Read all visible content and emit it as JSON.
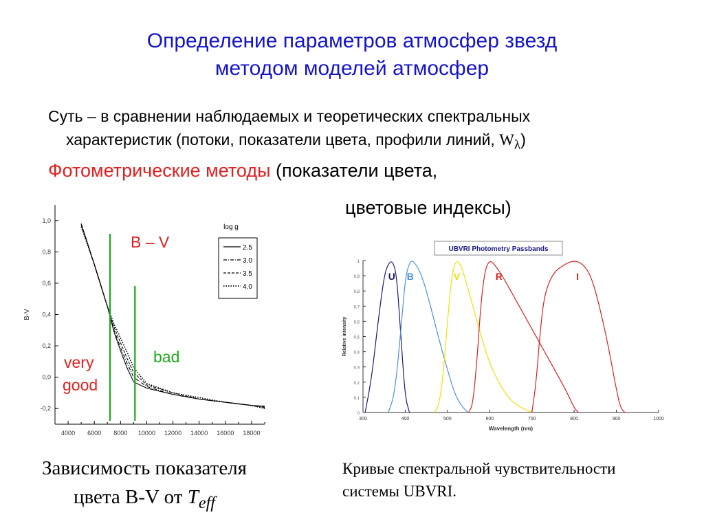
{
  "title": {
    "line1": "Определение параметров атмосфер звезд",
    "line2": "методом моделей атмосфер"
  },
  "essence": {
    "line1": "Суть – в сравнении наблюдаемых и теоретических спектральных",
    "line2": "характеристик (потоки, показатели цвета, профили линий, ",
    "w_symbol": "W",
    "w_sub": "λ",
    "close": ")"
  },
  "photometric": {
    "red_text": "Фотометрические методы",
    "rest": " (показатели цвета,",
    "line2": "цветовые индексы)"
  },
  "colors": {
    "title": "#1414c8",
    "accent_red": "#e02020",
    "green_line": "#1aaa1a",
    "band_U": "#1a1a6e",
    "band_B": "#4a8fdc",
    "band_V": "#f0e000",
    "band_R": "#d82020",
    "band_I": "#d82020"
  },
  "left_chart": {
    "chart_data": {
      "type": "line",
      "ylabel": "B-V",
      "xlim": [
        3000,
        19000
      ],
      "ylim": [
        -0.3,
        1.1
      ],
      "x_ticks": [
        "4000",
        "6000",
        "8000",
        "10000",
        "12000",
        "14000",
        "16000",
        "18000"
      ],
      "y_ticks": [
        "1,0",
        "0,8",
        "0,6",
        "0,4",
        "0,2",
        "0,0",
        "-0,2"
      ],
      "legend_title": "log g",
      "legend_position": "top-right",
      "series": [
        {
          "name": "2.5",
          "style": "solid",
          "x": [
            5000,
            6000,
            7000,
            7500,
            8000,
            8500,
            9000,
            10000,
            12000,
            14000,
            16000,
            18000,
            19000
          ],
          "values": [
            0.98,
            0.72,
            0.45,
            0.29,
            0.17,
            0.06,
            -0.03,
            -0.07,
            -0.11,
            -0.14,
            -0.16,
            -0.18,
            -0.185
          ]
        },
        {
          "name": "3.0",
          "style": "dashdot",
          "x": [
            5000,
            6000,
            7000,
            7500,
            8000,
            8500,
            9000,
            10000,
            12000,
            14000,
            16000,
            18000,
            19000
          ],
          "values": [
            0.98,
            0.72,
            0.45,
            0.3,
            0.19,
            0.09,
            0.0,
            -0.06,
            -0.11,
            -0.14,
            -0.16,
            -0.18,
            -0.19
          ]
        },
        {
          "name": "3.5",
          "style": "dashed",
          "x": [
            5000,
            6000,
            7000,
            7500,
            8000,
            8500,
            9000,
            10000,
            12000,
            14000,
            16000,
            18000,
            19000
          ],
          "values": [
            0.97,
            0.72,
            0.45,
            0.32,
            0.22,
            0.12,
            0.03,
            -0.05,
            -0.1,
            -0.14,
            -0.16,
            -0.18,
            -0.195
          ]
        },
        {
          "name": "4.0",
          "style": "dotted",
          "x": [
            5000,
            6000,
            7000,
            7500,
            8000,
            8500,
            9000,
            10000,
            12000,
            14000,
            16000,
            18000,
            19000
          ],
          "values": [
            0.96,
            0.72,
            0.45,
            0.34,
            0.25,
            0.16,
            0.06,
            -0.04,
            -0.1,
            -0.13,
            -0.16,
            -0.18,
            -0.2
          ]
        }
      ],
      "vertical_markers": [
        7200,
        9100
      ],
      "annotations": {
        "bv": "B – V",
        "very": "very",
        "good": "good",
        "bad": "bad"
      }
    }
  },
  "right_chart": {
    "chart_data": {
      "type": "line",
      "title": "UBVRI Photometry Passbands",
      "xlabel": "Wavelength (nm)",
      "ylabel": "Relative intensity",
      "xlim": [
        300,
        1000
      ],
      "ylim": [
        0,
        1
      ],
      "x_ticks": [
        "300",
        "400",
        "500",
        "600",
        "700",
        "800",
        "900",
        "1000"
      ],
      "y_ticks": [
        "1",
        "0.9",
        "0.8",
        "0.7",
        "0.6",
        "0.5",
        "0.4",
        "0.3",
        "0.2",
        "0.1",
        "0"
      ],
      "series": [
        {
          "name": "U",
          "x": [
            305,
            320,
            335,
            350,
            360,
            370,
            380,
            390,
            400,
            410
          ],
          "values": [
            0,
            0.22,
            0.58,
            0.9,
            0.98,
            1.0,
            0.9,
            0.48,
            0.1,
            0
          ]
        },
        {
          "name": "B",
          "x": [
            360,
            375,
            390,
            400,
            410,
            420,
            440,
            460,
            480,
            500,
            520,
            540,
            550
          ],
          "values": [
            0,
            0.12,
            0.55,
            0.88,
            0.99,
            1.0,
            0.9,
            0.7,
            0.48,
            0.28,
            0.1,
            0.02,
            0
          ]
        },
        {
          "name": "V",
          "x": [
            470,
            480,
            490,
            500,
            510,
            520,
            530,
            540,
            560,
            580,
            600,
            630,
            660,
            700
          ],
          "values": [
            0,
            0.05,
            0.25,
            0.6,
            0.9,
            1.0,
            0.98,
            0.9,
            0.7,
            0.5,
            0.32,
            0.15,
            0.05,
            0
          ]
        },
        {
          "name": "R",
          "x": [
            550,
            560,
            570,
            580,
            590,
            600,
            610,
            630,
            660,
            700,
            740,
            780,
            800,
            810
          ],
          "values": [
            0,
            0.05,
            0.35,
            0.75,
            0.95,
            1.0,
            0.98,
            0.9,
            0.75,
            0.55,
            0.35,
            0.15,
            0.03,
            0
          ]
        },
        {
          "name": "I",
          "x": [
            700,
            710,
            720,
            730,
            750,
            780,
            800,
            820,
            840,
            860,
            880,
            900,
            910,
            920
          ],
          "values": [
            0,
            0.2,
            0.55,
            0.78,
            0.92,
            0.98,
            1.0,
            0.98,
            0.9,
            0.7,
            0.45,
            0.15,
            0.03,
            0
          ]
        }
      ]
    }
  },
  "captions": {
    "left_line1": "Зависимость показателя",
    "left_line2_prefix": "цвета B-V от ",
    "left_T": "T",
    "left_sub": "eff",
    "right_line1": "Кривые спектральной чувствительности",
    "right_line2": "системы UBVRI."
  }
}
